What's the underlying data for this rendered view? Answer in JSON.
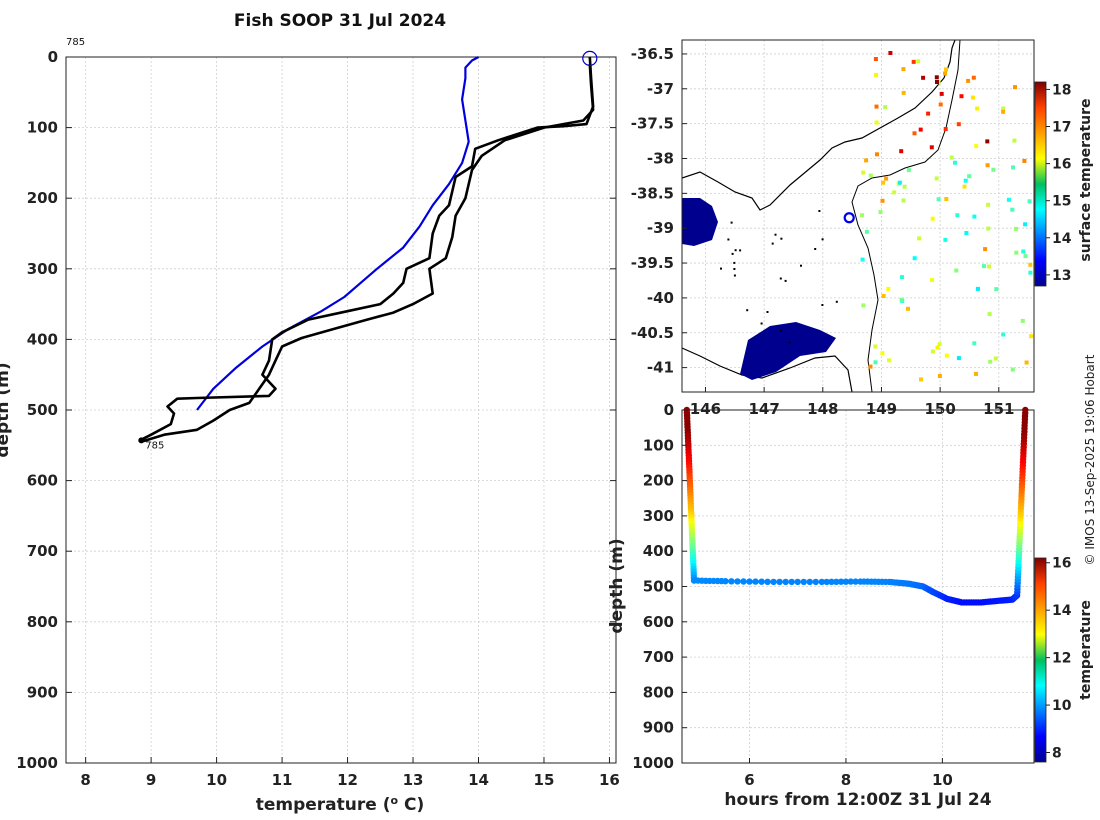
{
  "chart_data": [
    {
      "id": "profile",
      "type": "line",
      "title": "Fish SOOP 31 Jul 2024",
      "xlabel": "temperature",
      "xlabel_unit_sup": "o",
      "xlabel_unit": " C)",
      "ylabel": "depth (m)",
      "xlim": [
        7.7,
        16.1
      ],
      "ylim": [
        1000,
        0
      ],
      "xticks": [
        "8",
        "9",
        "10",
        "11",
        "12",
        "13",
        "14",
        "15",
        "16"
      ],
      "yticks": [
        "0",
        "100",
        "200",
        "300",
        "400",
        "500",
        "600",
        "700",
        "800",
        "900",
        "1000"
      ],
      "grid": true,
      "top_annotation": "785",
      "end_annotation": "785",
      "start_marker": {
        "x": 15.7,
        "y": 2
      },
      "end_marker": {
        "x": 8.85,
        "y": 543
      },
      "series": [
        {
          "name": "climatology",
          "color": "#0000dd",
          "points": [
            [
              14.0,
              0
            ],
            [
              13.9,
              5
            ],
            [
              13.8,
              15
            ],
            [
              13.8,
              30
            ],
            [
              13.75,
              60
            ],
            [
              13.8,
              90
            ],
            [
              13.85,
              120
            ],
            [
              13.75,
              150
            ],
            [
              13.55,
              180
            ],
            [
              13.3,
              210
            ],
            [
              13.1,
              240
            ],
            [
              12.85,
              270
            ],
            [
              12.45,
              300
            ],
            [
              12.2,
              320
            ],
            [
              11.95,
              340
            ],
            [
              11.6,
              360
            ],
            [
              11.1,
              385
            ],
            [
              10.7,
              410
            ],
            [
              10.3,
              440
            ],
            [
              9.95,
              470
            ],
            [
              9.7,
              500
            ]
          ]
        },
        {
          "name": "profile-down",
          "color": "#000000",
          "points": [
            [
              15.7,
              0
            ],
            [
              15.72,
              30
            ],
            [
              15.75,
              70
            ],
            [
              15.65,
              95
            ],
            [
              15.3,
              98
            ],
            [
              14.9,
              100
            ],
            [
              14.3,
              118
            ],
            [
              13.95,
              130
            ],
            [
              13.9,
              155
            ],
            [
              13.65,
              170
            ],
            [
              13.55,
              210
            ],
            [
              13.4,
              225
            ],
            [
              13.3,
              250
            ],
            [
              13.25,
              285
            ],
            [
              12.9,
              300
            ],
            [
              12.85,
              320
            ],
            [
              12.7,
              335
            ],
            [
              12.5,
              350
            ],
            [
              12.0,
              360
            ],
            [
              11.4,
              372
            ],
            [
              11.0,
              390
            ],
            [
              10.85,
              400
            ],
            [
              10.8,
              430
            ],
            [
              10.7,
              450
            ],
            [
              10.9,
              470
            ],
            [
              10.8,
              480
            ],
            [
              9.7,
              483
            ],
            [
              9.4,
              484
            ],
            [
              9.25,
              495
            ],
            [
              9.35,
              505
            ],
            [
              9.3,
              520
            ],
            [
              9.0,
              535
            ],
            [
              8.85,
              542
            ]
          ]
        },
        {
          "name": "profile-up",
          "color": "#000000",
          "points": [
            [
              8.85,
              545
            ],
            [
              9.2,
              535
            ],
            [
              9.7,
              528
            ],
            [
              9.95,
              515
            ],
            [
              10.2,
              500
            ],
            [
              10.5,
              490
            ],
            [
              10.65,
              470
            ],
            [
              10.8,
              450
            ],
            [
              10.9,
              430
            ],
            [
              11.0,
              410
            ],
            [
              11.3,
              398
            ],
            [
              11.8,
              385
            ],
            [
              12.3,
              372
            ],
            [
              12.7,
              362
            ],
            [
              13.0,
              350
            ],
            [
              13.3,
              335
            ],
            [
              13.25,
              300
            ],
            [
              13.5,
              285
            ],
            [
              13.6,
              255
            ],
            [
              13.65,
              225
            ],
            [
              13.8,
              200
            ],
            [
              13.9,
              160
            ],
            [
              14.05,
              140
            ],
            [
              14.4,
              118
            ],
            [
              15.0,
              100
            ],
            [
              15.6,
              90
            ],
            [
              15.75,
              75
            ],
            [
              15.72,
              40
            ],
            [
              15.7,
              10
            ]
          ]
        }
      ]
    },
    {
      "id": "map",
      "type": "heatmap",
      "colorbar_label": "surface temperature",
      "colorbar_range": [
        12.7,
        18.2
      ],
      "colorbar_ticks": [
        "13",
        "14",
        "15",
        "16",
        "17",
        "18"
      ],
      "xlim": [
        145.6,
        151.6
      ],
      "ylim": [
        -41.35,
        -36.3
      ],
      "xticks": [
        "146",
        "147",
        "148",
        "149",
        "150",
        "151"
      ],
      "yticks": [
        "-36.5",
        "-37",
        "-37.5",
        "-38",
        "-38.5",
        "-39",
        "-39.5",
        "-40",
        "-40.5",
        "-41"
      ],
      "location_marker": {
        "lon": 148.45,
        "lat": -38.85
      }
    },
    {
      "id": "track",
      "type": "scatter",
      "xlabel": "hours from 12:00Z 31 Jul 24",
      "ylabel": "depth (m)",
      "xlim": [
        4.6,
        11.9
      ],
      "ylim": [
        1000,
        0
      ],
      "xticks": [
        "6",
        "8",
        "10"
      ],
      "yticks": [
        "0",
        "100",
        "200",
        "300",
        "400",
        "500",
        "600",
        "700",
        "800",
        "900",
        "1000"
      ],
      "colorbar_label": "temperature",
      "colorbar_range": [
        7.6,
        16.2
      ],
      "colorbar_ticks": [
        "8",
        "10",
        "12",
        "14",
        "16"
      ],
      "down_leg": {
        "t0": 4.7,
        "t1": 4.85,
        "z0": 0,
        "z1": 483
      },
      "bottom_path": [
        [
          4.85,
          483
        ],
        [
          5.5,
          485
        ],
        [
          6.5,
          487
        ],
        [
          7.5,
          487
        ],
        [
          8.3,
          486
        ],
        [
          8.9,
          487
        ],
        [
          9.3,
          492
        ],
        [
          9.6,
          500
        ],
        [
          9.8,
          515
        ],
        [
          10.1,
          535
        ],
        [
          10.4,
          545
        ],
        [
          10.8,
          545
        ],
        [
          11.2,
          540
        ],
        [
          11.45,
          537
        ],
        [
          11.55,
          525
        ]
      ],
      "up_leg": {
        "t0": 11.55,
        "t1": 11.72,
        "z0": 525,
        "z1": 0
      }
    }
  ],
  "credit": "© IMOS 13-Sep-2025 19:06 Hobart"
}
